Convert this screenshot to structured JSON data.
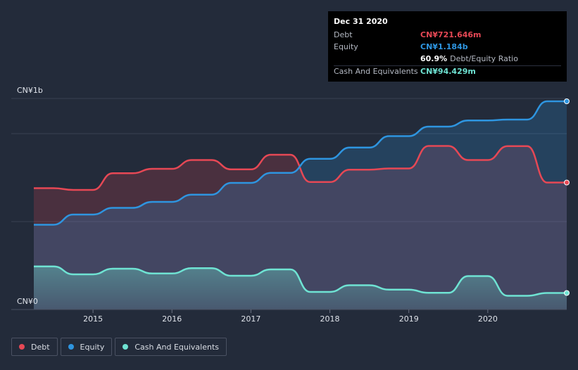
{
  "tooltip": {
    "date": "Dec 31 2020",
    "debt_label": "Debt",
    "debt_value": "CN¥721.646m",
    "equity_label": "Equity",
    "equity_value": "CN¥1.184b",
    "ratio_value": "60.9%",
    "ratio_label": "Debt/Equity Ratio",
    "cash_label": "Cash And Equivalents",
    "cash_value": "CN¥94.429m"
  },
  "legend": {
    "debt": "Debt",
    "equity": "Equity",
    "cash": "Cash And Equivalents"
  },
  "colors": {
    "background": "#232b3a",
    "debt": "#e64855",
    "equity": "#2e95e0",
    "cash": "#6fe3d3"
  },
  "chart_data": {
    "type": "area",
    "title": "",
    "xlabel": "",
    "ylabel": "",
    "unit": "CN¥ millions",
    "ylim": [
      0,
      1200
    ],
    "xlim": [
      2014.25,
      2021.0
    ],
    "y_tick_labels": [
      {
        "value": 0,
        "label": "CN¥0"
      },
      {
        "value": 1200,
        "label": "CN¥1b"
      }
    ],
    "gridlines": [
      0,
      500,
      1000,
      1200
    ],
    "x_ticks": [
      {
        "value": 2015,
        "label": "2015"
      },
      {
        "value": 2016,
        "label": "2016"
      },
      {
        "value": 2017,
        "label": "2017"
      },
      {
        "value": 2018,
        "label": "2018"
      },
      {
        "value": 2019,
        "label": "2019"
      },
      {
        "value": 2020,
        "label": "2020"
      }
    ],
    "x": [
      2014.25,
      2014.5,
      2014.75,
      2015.0,
      2015.25,
      2015.5,
      2015.75,
      2016.0,
      2016.25,
      2016.5,
      2016.75,
      2017.0,
      2017.25,
      2017.5,
      2017.75,
      2018.0,
      2018.25,
      2018.5,
      2018.75,
      2019.0,
      2019.25,
      2019.5,
      2019.75,
      2020.0,
      2020.25,
      2020.5,
      2020.75,
      2021.0
    ],
    "series": [
      {
        "name": "Debt",
        "values": [
          690,
          690,
          680,
          680,
          775,
          775,
          800,
          800,
          850,
          850,
          797,
          797,
          880,
          880,
          725,
          725,
          795,
          795,
          802,
          802,
          930,
          930,
          850,
          850,
          929,
          929,
          722,
          722
        ]
      },
      {
        "name": "Equity",
        "values": [
          482,
          482,
          540,
          540,
          578,
          578,
          612,
          612,
          653,
          653,
          720,
          720,
          777,
          777,
          857,
          857,
          921,
          921,
          986,
          986,
          1040,
          1040,
          1075,
          1075,
          1080,
          1080,
          1184,
          1184
        ]
      },
      {
        "name": "Cash And Equivalents",
        "values": [
          245,
          245,
          200,
          200,
          232,
          232,
          205,
          205,
          235,
          235,
          192,
          192,
          228,
          228,
          100,
          100,
          138,
          138,
          113,
          113,
          95,
          95,
          190,
          190,
          78,
          78,
          94,
          94
        ]
      }
    ]
  }
}
